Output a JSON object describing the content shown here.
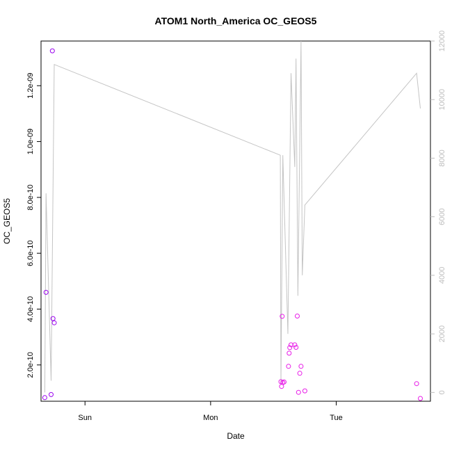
{
  "chart_data": {
    "type": "scatter",
    "title": "ATOM1 North_America OC_GEOS5",
    "xlabel": "Date",
    "ylabel": "OC_GEOS5",
    "xlim": [
      -0.35,
      2.75
    ],
    "ylim": [
      7e-11,
      1.36e-09
    ],
    "y2lim": [
      -300,
      12000
    ],
    "x_ticks": [
      {
        "value": 0,
        "label": "Sun"
      },
      {
        "value": 1,
        "label": "Mon"
      },
      {
        "value": 2,
        "label": "Tue"
      }
    ],
    "y_ticks": [
      {
        "value": 2e-10,
        "label": "2.0e-10"
      },
      {
        "value": 4e-10,
        "label": "4.0e-10"
      },
      {
        "value": 6e-10,
        "label": "6.0e-10"
      },
      {
        "value": 8e-10,
        "label": "8.0e-10"
      },
      {
        "value": 1e-09,
        "label": "1.0e-09"
      },
      {
        "value": 1.2e-09,
        "label": "1.2e-09"
      }
    ],
    "y2_ticks": [
      {
        "value": 0,
        "label": "0"
      },
      {
        "value": 2000,
        "label": "2000"
      },
      {
        "value": 4000,
        "label": "4000"
      },
      {
        "value": 6000,
        "label": "6000"
      },
      {
        "value": 8000,
        "label": "8000"
      },
      {
        "value": 10000,
        "label": "10000"
      },
      {
        "value": 12000,
        "label": "12000"
      }
    ],
    "grid": false,
    "series": [
      {
        "color": "#9900ee",
        "points": [
          {
            "x": -0.32,
            "y": 8.3e-11
          },
          {
            "x": -0.31,
            "y": 4.6e-10
          },
          {
            "x": -0.27,
            "y": 9.4e-11
          },
          {
            "x": -0.26,
            "y": 1.325e-09
          },
          {
            "x": -0.255,
            "y": 3.66e-10
          },
          {
            "x": -0.245,
            "y": 3.51e-10
          }
        ]
      },
      {
        "color": "#e81ce8",
        "points": [
          {
            "x": 1.56,
            "y": 1.4e-10
          },
          {
            "x": 1.565,
            "y": 1.23e-10
          },
          {
            "x": 1.57,
            "y": 3.74e-10
          },
          {
            "x": 1.575,
            "y": 1.37e-10
          },
          {
            "x": 1.585,
            "y": 1.39e-10
          },
          {
            "x": 1.62,
            "y": 1.95e-10
          },
          {
            "x": 1.625,
            "y": 2.42e-10
          },
          {
            "x": 1.63,
            "y": 2.62e-10
          },
          {
            "x": 1.64,
            "y": 2.72e-10
          },
          {
            "x": 1.67,
            "y": 2.72e-10
          },
          {
            "x": 1.68,
            "y": 2.63e-10
          },
          {
            "x": 1.69,
            "y": 3.75e-10
          },
          {
            "x": 1.7,
            "y": 1.02e-10
          },
          {
            "x": 1.71,
            "y": 1.7e-10
          },
          {
            "x": 1.72,
            "y": 1.95e-10
          },
          {
            "x": 1.75,
            "y": 1.07e-10
          },
          {
            "x": 2.64,
            "y": 1.33e-10
          },
          {
            "x": 2.67,
            "y": 8e-11
          }
        ]
      }
    ],
    "line_series": {
      "color": "#c4c4c4",
      "axis": "right",
      "points": [
        {
          "x": -0.32,
          "y": 0
        },
        {
          "x": -0.31,
          "y": 6800
        },
        {
          "x": -0.27,
          "y": 400
        },
        {
          "x": -0.245,
          "y": 11200
        },
        {
          "x": 1.555,
          "y": 8100
        },
        {
          "x": 1.56,
          "y": 300
        },
        {
          "x": 1.575,
          "y": 8100
        },
        {
          "x": 1.615,
          "y": 2000
        },
        {
          "x": 1.64,
          "y": 10900
        },
        {
          "x": 1.67,
          "y": 7700
        },
        {
          "x": 1.68,
          "y": 11400
        },
        {
          "x": 1.695,
          "y": 3300
        },
        {
          "x": 1.72,
          "y": 12000
        },
        {
          "x": 1.73,
          "y": 4000
        },
        {
          "x": 1.75,
          "y": 6400
        },
        {
          "x": 2.64,
          "y": 10900
        },
        {
          "x": 2.67,
          "y": 9700
        }
      ]
    }
  }
}
